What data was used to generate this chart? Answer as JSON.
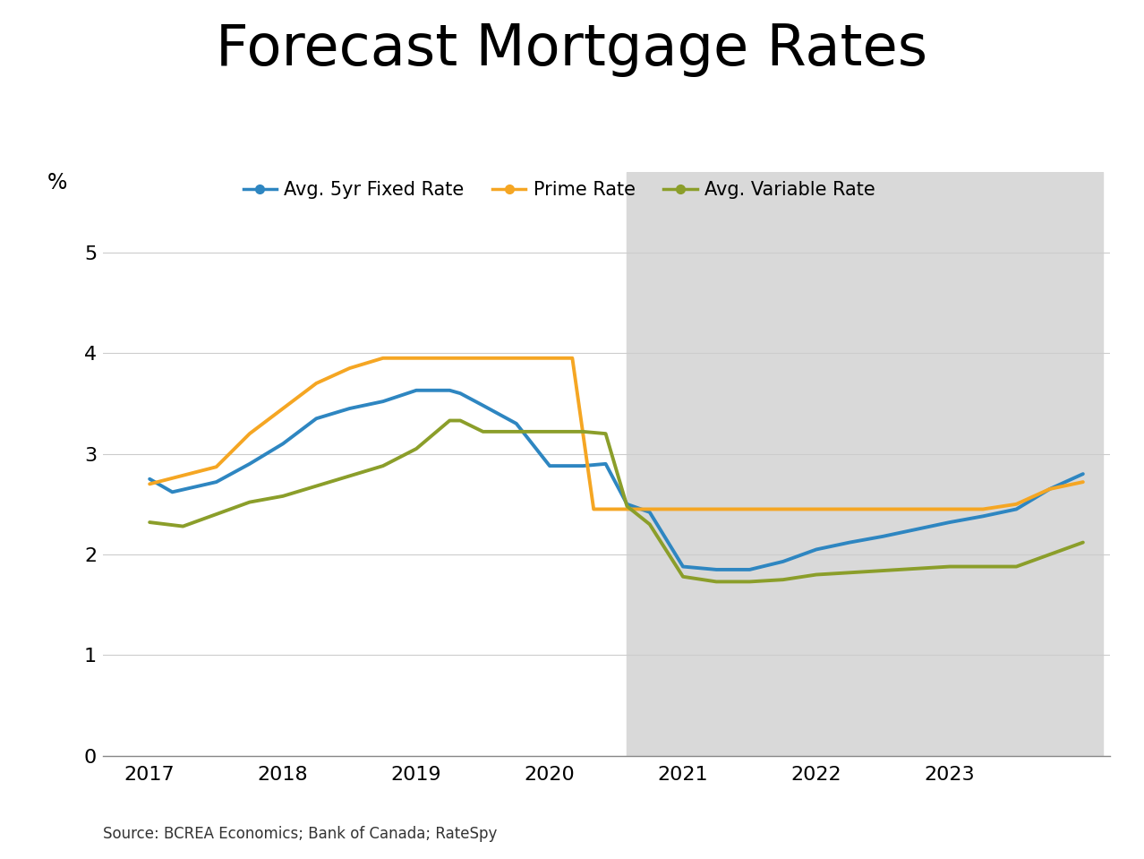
{
  "title": "Forecast Mortgage Rates",
  "ylabel": "%",
  "source_text": "Source: BCREA Economics; Bank of Canada; RateSpy",
  "background_color": "#ffffff",
  "forecast_shade_color": "#d9d9d9",
  "forecast_start": 2020.58,
  "forecast_end": 2024.15,
  "ylim": [
    0,
    5.8
  ],
  "yticks": [
    0,
    1,
    2,
    3,
    4,
    5
  ],
  "xlim": [
    2016.65,
    2024.2
  ],
  "xticks": [
    2017,
    2018,
    2019,
    2020,
    2021,
    2022,
    2023
  ],
  "fixed_rate": {
    "label": "Avg. 5yr Fixed Rate",
    "color": "#2E86C1",
    "linewidth": 2.8,
    "x": [
      2017.0,
      2017.17,
      2017.5,
      2017.75,
      2018.0,
      2018.25,
      2018.5,
      2018.75,
      2019.0,
      2019.25,
      2019.33,
      2019.5,
      2019.75,
      2020.0,
      2020.25,
      2020.42,
      2020.58,
      2020.75,
      2021.0,
      2021.25,
      2021.5,
      2021.75,
      2022.0,
      2022.25,
      2022.5,
      2022.75,
      2023.0,
      2023.25,
      2023.5,
      2023.75,
      2024.0
    ],
    "y": [
      2.75,
      2.62,
      2.72,
      2.9,
      3.1,
      3.35,
      3.45,
      3.52,
      3.63,
      3.63,
      3.6,
      3.48,
      3.3,
      2.88,
      2.88,
      2.9,
      2.5,
      2.42,
      1.88,
      1.85,
      1.85,
      1.93,
      2.05,
      2.12,
      2.18,
      2.25,
      2.32,
      2.38,
      2.45,
      2.65,
      2.8
    ]
  },
  "prime_rate": {
    "label": "Prime Rate",
    "color": "#F5A623",
    "linewidth": 2.8,
    "x": [
      2017.0,
      2017.5,
      2017.75,
      2018.0,
      2018.25,
      2018.5,
      2018.75,
      2019.0,
      2019.25,
      2019.5,
      2019.67,
      2020.0,
      2020.17,
      2020.33,
      2020.58,
      2020.75,
      2021.0,
      2021.5,
      2022.0,
      2022.5,
      2023.0,
      2023.25,
      2023.5,
      2023.75,
      2024.0
    ],
    "y": [
      2.7,
      2.87,
      3.2,
      3.45,
      3.7,
      3.85,
      3.95,
      3.95,
      3.95,
      3.95,
      3.95,
      3.95,
      3.95,
      2.45,
      2.45,
      2.45,
      2.45,
      2.45,
      2.45,
      2.45,
      2.45,
      2.45,
      2.5,
      2.65,
      2.72
    ]
  },
  "variable_rate": {
    "label": "Avg. Variable Rate",
    "color": "#8B9E2A",
    "linewidth": 2.8,
    "x": [
      2017.0,
      2017.25,
      2017.5,
      2017.75,
      2018.0,
      2018.25,
      2018.5,
      2018.75,
      2019.0,
      2019.25,
      2019.33,
      2019.5,
      2019.75,
      2020.0,
      2020.25,
      2020.42,
      2020.58,
      2020.75,
      2021.0,
      2021.25,
      2021.5,
      2021.75,
      2022.0,
      2022.25,
      2022.5,
      2022.75,
      2023.0,
      2023.25,
      2023.5,
      2023.75,
      2024.0
    ],
    "y": [
      2.32,
      2.28,
      2.4,
      2.52,
      2.58,
      2.68,
      2.78,
      2.88,
      3.05,
      3.33,
      3.33,
      3.22,
      3.22,
      3.22,
      3.22,
      3.2,
      2.48,
      2.3,
      1.78,
      1.73,
      1.73,
      1.75,
      1.8,
      1.82,
      1.84,
      1.86,
      1.88,
      1.88,
      1.88,
      2.0,
      2.12
    ]
  }
}
